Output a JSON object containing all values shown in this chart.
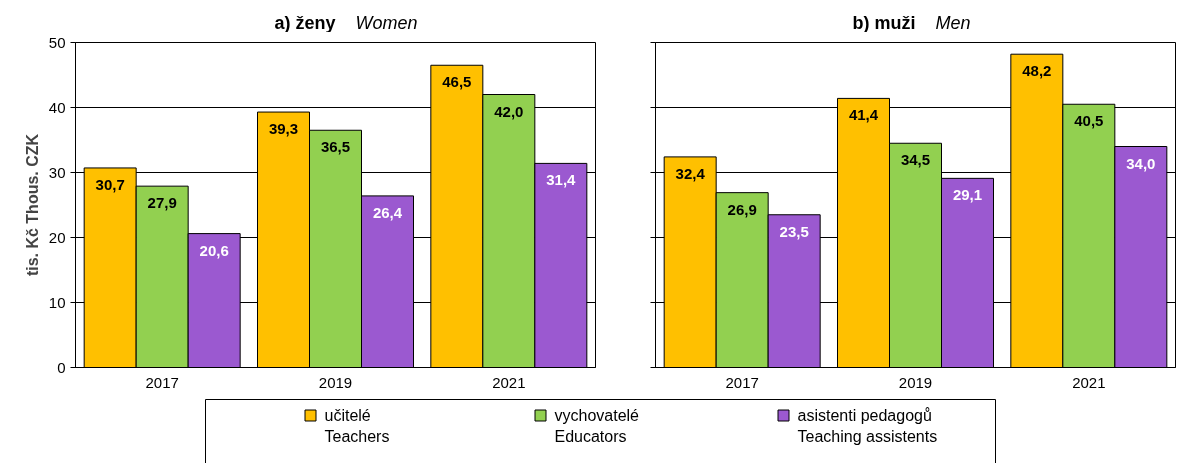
{
  "chart_data": [
    {
      "type": "bar",
      "title": "a) ženy",
      "subtitle": "Women",
      "ylabel": "tis. Kč Thous. CZK",
      "categories": [
        "2017",
        "2019",
        "2021"
      ],
      "ylim": [
        0,
        50
      ],
      "yticks": [
        0,
        10,
        20,
        30,
        40,
        50
      ],
      "grid": "y",
      "legend": "bottom",
      "series": [
        {
          "name": "učitelé\nTeachers",
          "color": "#ffc000",
          "values": [
            30.7,
            39.3,
            46.5
          ],
          "value_labels": [
            "30,7",
            "39,3",
            "46,5"
          ]
        },
        {
          "name": "vychovatelé\nEducators",
          "color": "#92d050",
          "values": [
            27.9,
            36.5,
            42.0
          ],
          "value_labels": [
            "27,9",
            "36,5",
            "42,0"
          ]
        },
        {
          "name": "asistenti pedagogů\nTeaching assistents",
          "color": "#9b59d0",
          "values": [
            20.6,
            26.4,
            31.4
          ],
          "value_labels": [
            "20,6",
            "26,4",
            "31,4"
          ]
        }
      ]
    },
    {
      "type": "bar",
      "title": "b) muži",
      "subtitle": "Men",
      "categories": [
        "2017",
        "2019",
        "2021"
      ],
      "ylim": [
        0,
        50
      ],
      "yticks": [
        0,
        10,
        20,
        30,
        40,
        50
      ],
      "grid": "y",
      "tick_labels": "x",
      "series": [
        {
          "color": "#ffc000",
          "values": [
            32.4,
            41.4,
            48.2
          ],
          "value_labels": [
            "32,4",
            "41,4",
            "48,2"
          ]
        },
        {
          "color": "#92d050",
          "values": [
            26.9,
            34.5,
            40.5
          ],
          "value_labels": [
            "26,9",
            "34,5",
            "40,5"
          ]
        },
        {
          "color": "#9b59d0",
          "values": [
            23.5,
            29.1,
            34.0
          ],
          "value_labels": [
            "23,5",
            "29,1",
            "34,0"
          ]
        }
      ]
    }
  ]
}
